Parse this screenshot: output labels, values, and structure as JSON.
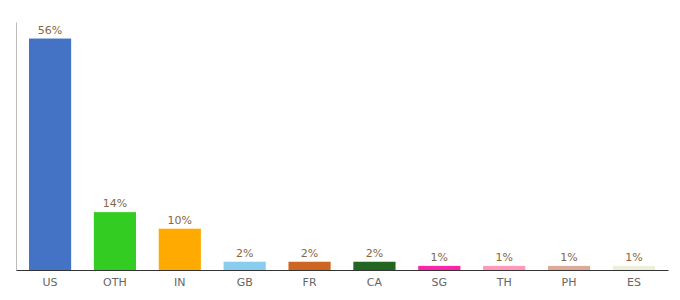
{
  "chart_data": {
    "type": "bar",
    "categories": [
      "US",
      "OTH",
      "IN",
      "GB",
      "FR",
      "CA",
      "SG",
      "TH",
      "PH",
      "ES"
    ],
    "values": [
      56,
      14,
      10,
      2,
      2,
      2,
      1,
      1,
      1,
      1
    ],
    "value_labels": [
      "56%",
      "14%",
      "10%",
      "2%",
      "2%",
      "2%",
      "1%",
      "1%",
      "1%",
      "1%"
    ],
    "colors": [
      "#4472c4",
      "#33cc22",
      "#ffaa00",
      "#88ccee",
      "#cc6622",
      "#226622",
      "#ff22aa",
      "#ff99bb",
      "#ddaa99",
      "#eeeedd"
    ],
    "ylim": [
      0,
      60
    ],
    "data_labels": true,
    "tick_labels": "x",
    "grid": false
  }
}
